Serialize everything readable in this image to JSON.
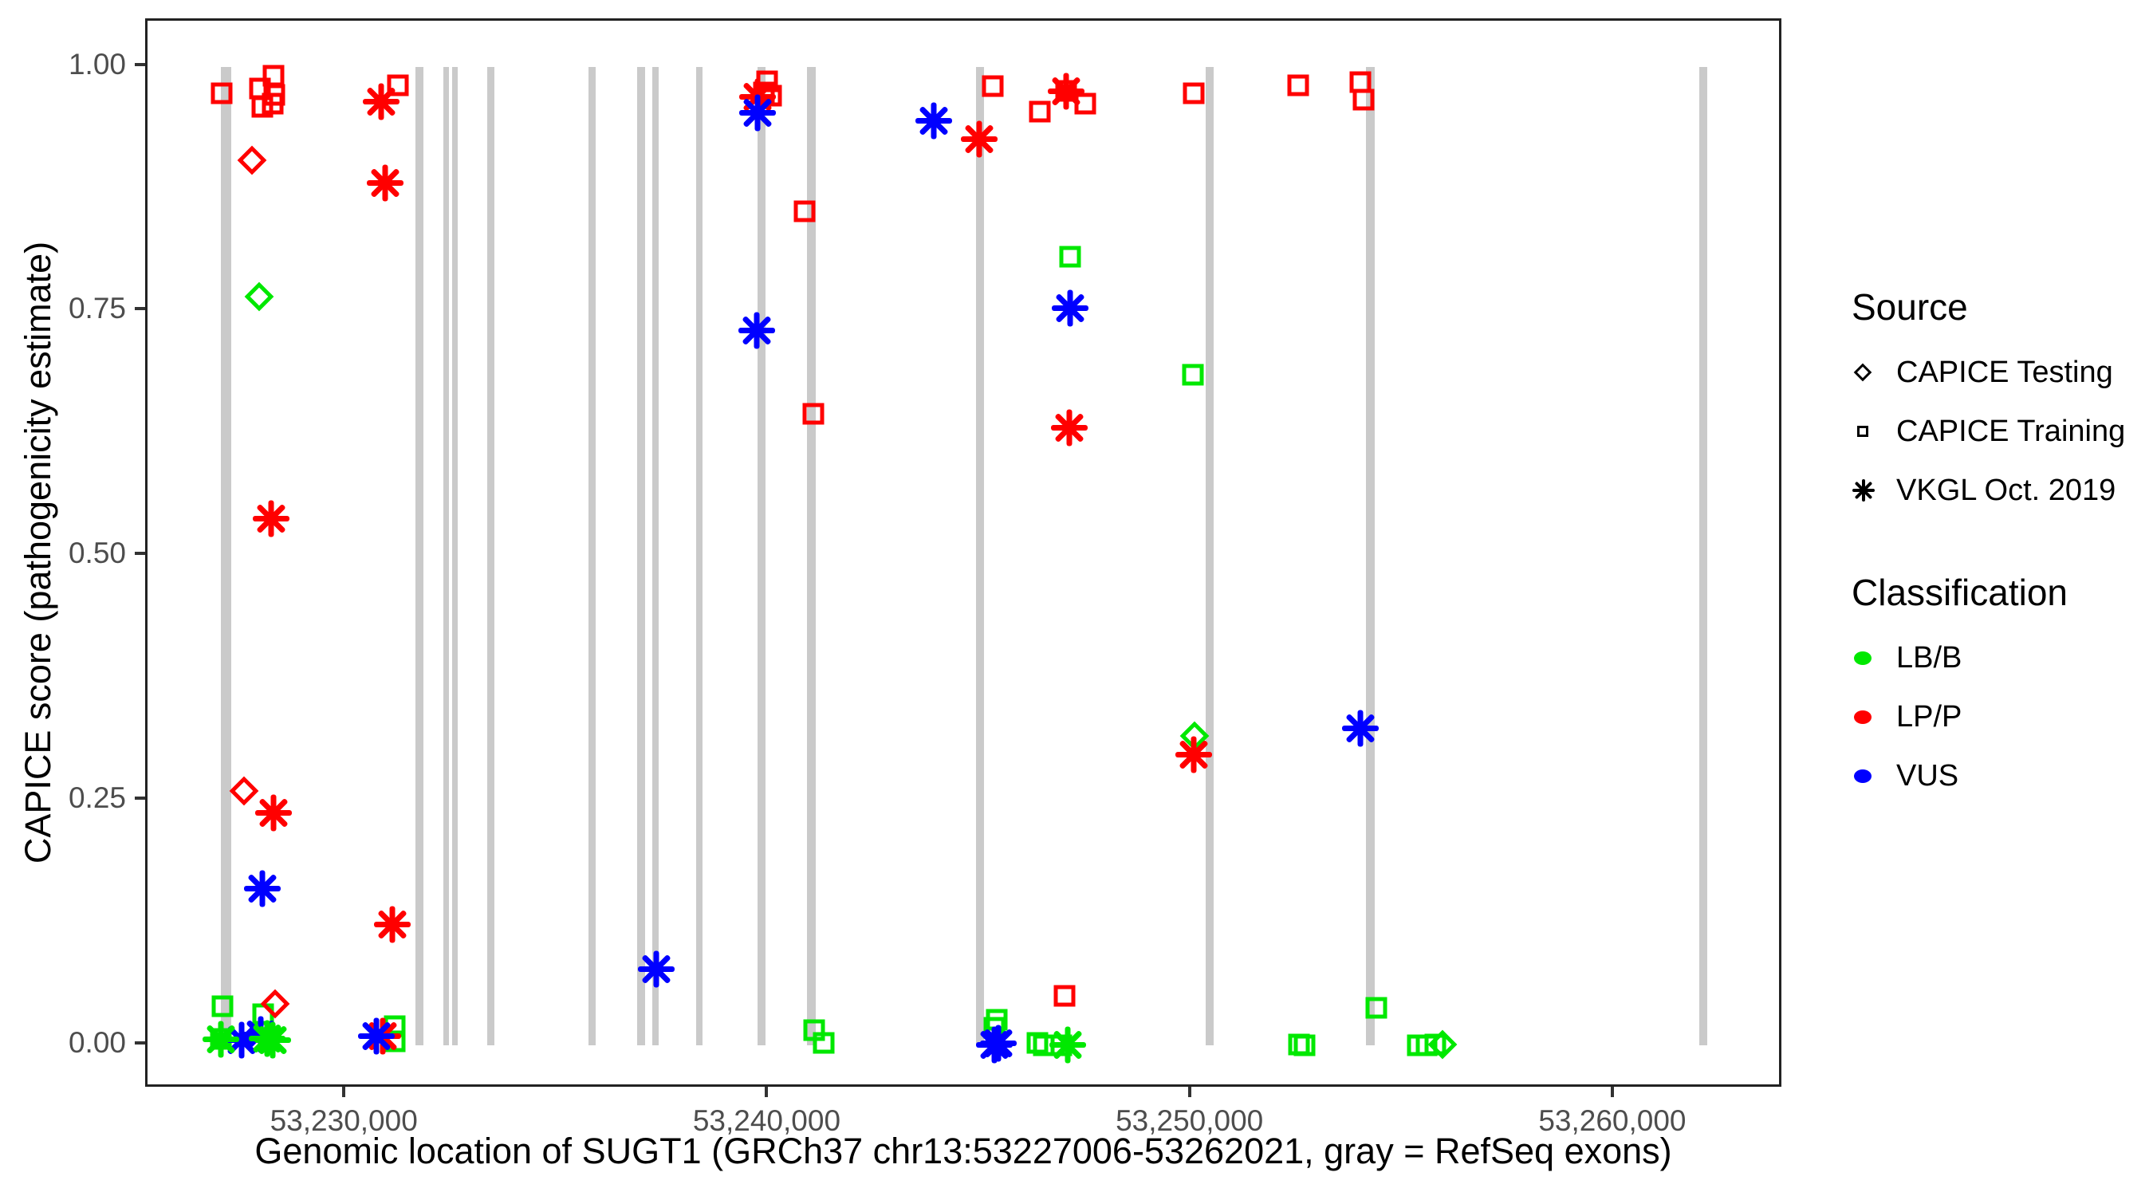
{
  "chart_data": {
    "type": "scatter",
    "xlabel": "Genomic location of SUGT1 (GRCh37 chr13:53227006-53262021, gray = RefSeq exons)",
    "ylabel": "CAPICE score (pathogenicity estimate)",
    "xlim": [
      53225300,
      53264000
    ],
    "ylim": [
      -0.045,
      1.047
    ],
    "x_ticks": [
      {
        "value": 53230000,
        "label": "53,230,000"
      },
      {
        "value": 53240000,
        "label": "53,240,000"
      },
      {
        "value": 53250000,
        "label": "53,250,000"
      },
      {
        "value": 53260000,
        "label": "53,260,000"
      }
    ],
    "y_ticks": [
      {
        "value": 0.0,
        "label": "0.00"
      },
      {
        "value": 0.25,
        "label": "0.25"
      },
      {
        "value": 0.5,
        "label": "0.50"
      },
      {
        "value": 0.75,
        "label": "0.75"
      },
      {
        "value": 1.0,
        "label": "1.00"
      }
    ],
    "colors": {
      "LB/B": "#00e800",
      "LP/P": "#ff0000",
      "VUS": "#0000ff",
      "exon": "#cacaca"
    },
    "shape_by_source": {
      "CAPICE Testing": "diamond",
      "CAPICE Training": "square",
      "VKGL Oct. 2019": "asterisk"
    },
    "exons": [
      {
        "bp": 53227160,
        "width_bp": 250
      },
      {
        "bp": 53231736,
        "width_bp": 190
      },
      {
        "bp": 53232358,
        "width_bp": 135
      },
      {
        "bp": 53232566,
        "width_bp": 135
      },
      {
        "bp": 53233415,
        "width_bp": 170
      },
      {
        "bp": 53235811,
        "width_bp": 170
      },
      {
        "bp": 53236981,
        "width_bp": 190
      },
      {
        "bp": 53237321,
        "width_bp": 150
      },
      {
        "bp": 53238358,
        "width_bp": 150
      },
      {
        "bp": 53239830,
        "width_bp": 190
      },
      {
        "bp": 53241000,
        "width_bp": 210
      },
      {
        "bp": 53244981,
        "width_bp": 190
      },
      {
        "bp": 53250415,
        "width_bp": 190
      },
      {
        "bp": 53254226,
        "width_bp": 210
      },
      {
        "bp": 53262100,
        "width_bp": 190
      }
    ],
    "points": [
      {
        "source": "CAPICE Training",
        "class": "LP/P",
        "bp": 53227057,
        "score": 0.973
      },
      {
        "source": "CAPICE Training",
        "class": "LP/P",
        "bp": 53227962,
        "score": 0.978
      },
      {
        "source": "CAPICE Training",
        "class": "LP/P",
        "bp": 53228283,
        "score": 0.991
      },
      {
        "source": "CAPICE Training",
        "class": "LP/P",
        "bp": 53228019,
        "score": 0.959
      },
      {
        "source": "CAPICE Training",
        "class": "LP/P",
        "bp": 53228264,
        "score": 0.962
      },
      {
        "source": "CAPICE Training",
        "class": "LP/P",
        "bp": 53228302,
        "score": 0.971
      },
      {
        "source": "CAPICE Training",
        "class": "LP/P",
        "bp": 53231226,
        "score": 0.981
      },
      {
        "source": "CAPICE Training",
        "class": "LP/P",
        "bp": 53239962,
        "score": 0.985
      },
      {
        "source": "CAPICE Training",
        "class": "LP/P",
        "bp": 53239887,
        "score": 0.974
      },
      {
        "source": "CAPICE Training",
        "class": "LP/P",
        "bp": 53240057,
        "score": 0.97
      },
      {
        "source": "CAPICE Training",
        "class": "LP/P",
        "bp": 53240849,
        "score": 0.852
      },
      {
        "source": "CAPICE Training",
        "class": "LP/P",
        "bp": 53241057,
        "score": 0.645
      },
      {
        "source": "CAPICE Training",
        "class": "LP/P",
        "bp": 53245283,
        "score": 0.98
      },
      {
        "source": "CAPICE Training",
        "class": "LP/P",
        "bp": 53246396,
        "score": 0.954
      },
      {
        "source": "CAPICE Training",
        "class": "LP/P",
        "bp": 53247019,
        "score": 0.975
      },
      {
        "source": "CAPICE Training",
        "class": "LP/P",
        "bp": 53247472,
        "score": 0.962
      },
      {
        "source": "CAPICE Training",
        "class": "LP/P",
        "bp": 53250038,
        "score": 0.973
      },
      {
        "source": "CAPICE Training",
        "class": "LP/P",
        "bp": 53252509,
        "score": 0.981
      },
      {
        "source": "CAPICE Training",
        "class": "LP/P",
        "bp": 53253981,
        "score": 0.984
      },
      {
        "source": "CAPICE Training",
        "class": "LP/P",
        "bp": 53254057,
        "score": 0.966
      },
      {
        "source": "CAPICE Training",
        "class": "LP/P",
        "bp": 53246981,
        "score": 0.05
      },
      {
        "source": "CAPICE Training",
        "class": "LB/B",
        "bp": 53247114,
        "score": 0.806
      },
      {
        "source": "CAPICE Training",
        "class": "LB/B",
        "bp": 53250019,
        "score": 0.685
      },
      {
        "source": "CAPICE Training",
        "class": "LB/B",
        "bp": 53227075,
        "score": 0.04
      },
      {
        "source": "CAPICE Training",
        "class": "LB/B",
        "bp": 53228038,
        "score": 0.032
      },
      {
        "source": "CAPICE Training",
        "class": "LB/B",
        "bp": 53227038,
        "score": 0.006
      },
      {
        "source": "CAPICE Training",
        "class": "LB/B",
        "bp": 53231151,
        "score": 0.019
      },
      {
        "source": "CAPICE Training",
        "class": "LB/B",
        "bp": 53231151,
        "score": 0.004
      },
      {
        "source": "CAPICE Training",
        "class": "LB/B",
        "bp": 53241075,
        "score": 0.015
      },
      {
        "source": "CAPICE Training",
        "class": "LB/B",
        "bp": 53241302,
        "score": 0.002
      },
      {
        "source": "CAPICE Training",
        "class": "LB/B",
        "bp": 53245377,
        "score": 0.026
      },
      {
        "source": "CAPICE Training",
        "class": "LB/B",
        "bp": 53245321,
        "score": 0.018
      },
      {
        "source": "CAPICE Training",
        "class": "LB/B",
        "bp": 53246340,
        "score": 0.002
      },
      {
        "source": "CAPICE Training",
        "class": "LB/B",
        "bp": 53246491,
        "score": 0.0
      },
      {
        "source": "CAPICE Training",
        "class": "LB/B",
        "bp": 53246906,
        "score": 0.0
      },
      {
        "source": "CAPICE Training",
        "class": "LB/B",
        "bp": 53252528,
        "score": 0.001
      },
      {
        "source": "CAPICE Training",
        "class": "LB/B",
        "bp": 53252660,
        "score": 0.0
      },
      {
        "source": "CAPICE Training",
        "class": "LB/B",
        "bp": 53254359,
        "score": 0.038
      },
      {
        "source": "CAPICE Training",
        "class": "LB/B",
        "bp": 53255340,
        "score": 0.0
      },
      {
        "source": "CAPICE Training",
        "class": "LB/B",
        "bp": 53255547,
        "score": 0.0
      },
      {
        "source": "CAPICE Training",
        "class": "LB/B",
        "bp": 53255755,
        "score": 0.001
      },
      {
        "source": "CAPICE Testing",
        "class": "LP/P",
        "bp": 53227774,
        "score": 0.904
      },
      {
        "source": "CAPICE Testing",
        "class": "LP/P",
        "bp": 53227585,
        "score": 0.26
      },
      {
        "source": "CAPICE Testing",
        "class": "LP/P",
        "bp": 53228321,
        "score": 0.042
      },
      {
        "source": "CAPICE Testing",
        "class": "LB/B",
        "bp": 53227943,
        "score": 0.765
      },
      {
        "source": "CAPICE Testing",
        "class": "LB/B",
        "bp": 53250057,
        "score": 0.316
      },
      {
        "source": "CAPICE Testing",
        "class": "LB/B",
        "bp": 53255925,
        "score": 0.001
      },
      {
        "source": "VKGL Oct. 2019",
        "class": "LP/P",
        "bp": 53230830,
        "score": 0.964
      },
      {
        "source": "VKGL Oct. 2019",
        "class": "LP/P",
        "bp": 53230925,
        "score": 0.881
      },
      {
        "source": "VKGL Oct. 2019",
        "class": "LP/P",
        "bp": 53239736,
        "score": 0.969
      },
      {
        "source": "VKGL Oct. 2019",
        "class": "LP/P",
        "bp": 53244962,
        "score": 0.926
      },
      {
        "source": "VKGL Oct. 2019",
        "class": "LP/P",
        "bp": 53247019,
        "score": 0.975
      },
      {
        "source": "VKGL Oct. 2019",
        "class": "LP/P",
        "bp": 53247094,
        "score": 0.631
      },
      {
        "source": "VKGL Oct. 2019",
        "class": "LP/P",
        "bp": 53228226,
        "score": 0.538
      },
      {
        "source": "VKGL Oct. 2019",
        "class": "LP/P",
        "bp": 53250038,
        "score": 0.297
      },
      {
        "source": "VKGL Oct. 2019",
        "class": "LP/P",
        "bp": 53228283,
        "score": 0.237
      },
      {
        "source": "VKGL Oct. 2019",
        "class": "LP/P",
        "bp": 53231094,
        "score": 0.123
      },
      {
        "source": "VKGL Oct. 2019",
        "class": "LP/P",
        "bp": 53230868,
        "score": 0.009
      },
      {
        "source": "VKGL Oct. 2019",
        "class": "VUS",
        "bp": 53239736,
        "score": 0.953
      },
      {
        "source": "VKGL Oct. 2019",
        "class": "VUS",
        "bp": 53243887,
        "score": 0.945
      },
      {
        "source": "VKGL Oct. 2019",
        "class": "VUS",
        "bp": 53239717,
        "score": 0.73
      },
      {
        "source": "VKGL Oct. 2019",
        "class": "VUS",
        "bp": 53247114,
        "score": 0.753
      },
      {
        "source": "VKGL Oct. 2019",
        "class": "VUS",
        "bp": 53253981,
        "score": 0.324
      },
      {
        "source": "VKGL Oct. 2019",
        "class": "VUS",
        "bp": 53228019,
        "score": 0.16
      },
      {
        "source": "VKGL Oct. 2019",
        "class": "VUS",
        "bp": 53237340,
        "score": 0.078
      },
      {
        "source": "VKGL Oct. 2019",
        "class": "VUS",
        "bp": 53230717,
        "score": 0.009
      },
      {
        "source": "VKGL Oct. 2019",
        "class": "VUS",
        "bp": 53227528,
        "score": 0.005
      },
      {
        "source": "VKGL Oct. 2019",
        "class": "VUS",
        "bp": 53227981,
        "score": 0.011
      },
      {
        "source": "VKGL Oct. 2019",
        "class": "VUS",
        "bp": 53245415,
        "score": 0.002
      },
      {
        "source": "VKGL Oct. 2019",
        "class": "VUS",
        "bp": 53245321,
        "score": 0.0
      },
      {
        "source": "VKGL Oct. 2019",
        "class": "LB/B",
        "bp": 53227038,
        "score": 0.006
      },
      {
        "source": "VKGL Oct. 2019",
        "class": "LB/B",
        "bp": 53228132,
        "score": 0.007
      },
      {
        "source": "VKGL Oct. 2019",
        "class": "LB/B",
        "bp": 53228264,
        "score": 0.005
      },
      {
        "source": "VKGL Oct. 2019",
        "class": "LB/B",
        "bp": 53247057,
        "score": 0.0
      }
    ]
  },
  "legend": {
    "source_title": "Source",
    "source_items": [
      {
        "label": "CAPICE Testing",
        "shape": "diamond"
      },
      {
        "label": "CAPICE Training",
        "shape": "square"
      },
      {
        "label": "VKGL Oct. 2019",
        "shape": "asterisk"
      }
    ],
    "classification_title": "Classification",
    "classification_items": [
      {
        "label": "LB/B",
        "color_key": "LB/B"
      },
      {
        "label": "LP/P",
        "color_key": "LP/P"
      },
      {
        "label": "VUS",
        "color_key": "VUS"
      }
    ]
  }
}
